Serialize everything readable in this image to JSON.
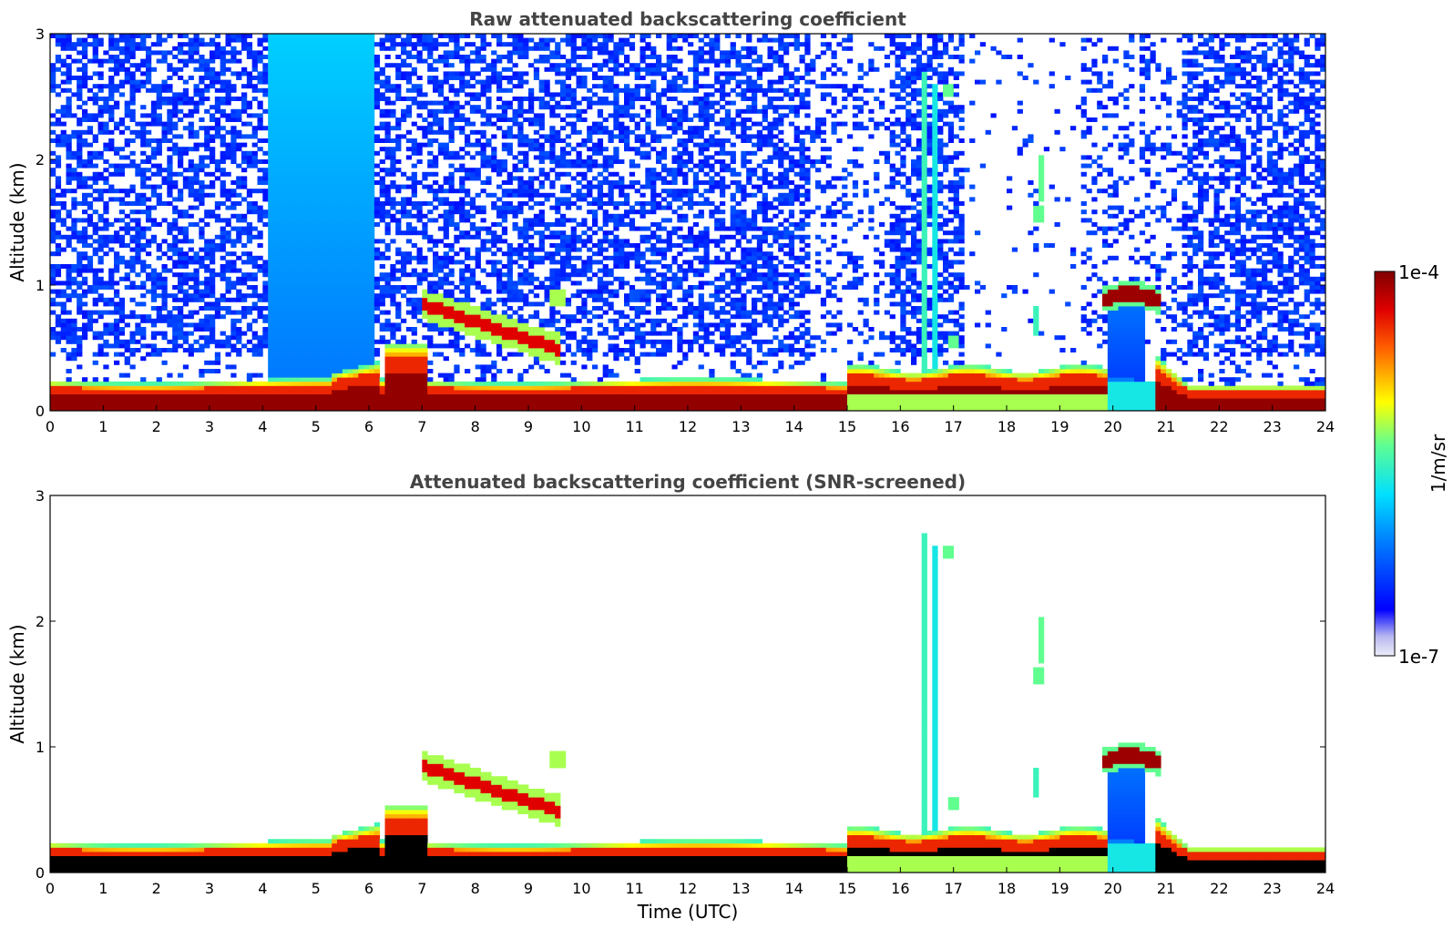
{
  "chart_data": [
    {
      "type": "heatmap",
      "title": "Raw attenuated backscattering coefficient",
      "xlabel": "",
      "ylabel": "Altitude (km)",
      "xlim": [
        0,
        24
      ],
      "ylim": [
        0,
        3
      ],
      "xticks": [
        "0",
        "1",
        "2",
        "3",
        "4",
        "5",
        "6",
        "7",
        "8",
        "9",
        "10",
        "11",
        "12",
        "13",
        "14",
        "15",
        "16",
        "17",
        "18",
        "19",
        "20",
        "21",
        "22",
        "23",
        "24"
      ],
      "yticks": [
        "0",
        "1",
        "2",
        "3"
      ],
      "grid": false,
      "features": [
        {
          "kind": "surface-layer",
          "x": [
            0,
            24
          ],
          "top_km": [
            0.28,
            0.2
          ],
          "value": 0.0001
        },
        {
          "kind": "boundary-layer",
          "x": [
            15,
            19.9
          ],
          "top_km": 0.35,
          "value": 5e-05
        },
        {
          "kind": "aerosol-layer",
          "x": [
            7,
            9.6
          ],
          "alt_km": [
            0.85,
            0.5
          ],
          "value": 5e-05
        },
        {
          "kind": "cloud",
          "x": [
            19.9,
            20.8
          ],
          "alt_km": 0.9,
          "value": 0.0001
        },
        {
          "kind": "plume",
          "x": [
            16.4,
            16.7
          ],
          "alt_km": [
            0.3,
            2.7
          ],
          "value": 5e-06
        },
        {
          "kind": "elevated-aerosol",
          "x": [
            18.5,
            18.7
          ],
          "alt_km": [
            1.5,
            2.0
          ],
          "value": 5e-06
        },
        {
          "kind": "background-noise",
          "x": [
            4.0,
            6.1
          ],
          "alt_km": [
            0.3,
            3.0
          ],
          "value": 2e-06
        }
      ]
    },
    {
      "type": "heatmap",
      "title": "Attenuated backscattering coefficient (SNR-screened)",
      "xlabel": "Time (UTC)",
      "ylabel": "Altitude (km)",
      "xlim": [
        0,
        24
      ],
      "ylim": [
        0,
        3
      ],
      "xticks": [
        "0",
        "1",
        "2",
        "3",
        "4",
        "5",
        "6",
        "7",
        "8",
        "9",
        "10",
        "11",
        "12",
        "13",
        "14",
        "15",
        "16",
        "17",
        "18",
        "19",
        "20",
        "21",
        "22",
        "23",
        "24"
      ],
      "yticks": [
        "0",
        "1",
        "2",
        "3"
      ],
      "grid": false,
      "features": [
        {
          "kind": "surface-layer",
          "x": [
            0,
            24
          ],
          "top_km": [
            0.28,
            0.2
          ],
          "value": 0.0001
        },
        {
          "kind": "boundary-layer",
          "x": [
            15,
            19.9
          ],
          "top_km": 0.35,
          "value": 5e-05
        },
        {
          "kind": "aerosol-layer",
          "x": [
            7,
            9.6
          ],
          "alt_km": [
            0.85,
            0.5
          ],
          "value": 5e-05
        },
        {
          "kind": "cloud",
          "x": [
            19.9,
            20.8
          ],
          "alt_km": 0.9,
          "value": 0.0001
        },
        {
          "kind": "plume",
          "x": [
            16.4,
            16.7
          ],
          "alt_km": [
            0.3,
            2.7
          ],
          "value": 5e-06
        },
        {
          "kind": "elevated-aerosol",
          "x": [
            18.5,
            18.7
          ],
          "alt_km": [
            1.5,
            2.0
          ],
          "value": 5e-06
        }
      ]
    }
  ],
  "colorbar": {
    "label": "1/m/sr",
    "max_label": "1e-4",
    "min_label": "1e-7",
    "scale": "log",
    "range": [
      1e-07,
      0.0001
    ],
    "colormap": "jet"
  }
}
